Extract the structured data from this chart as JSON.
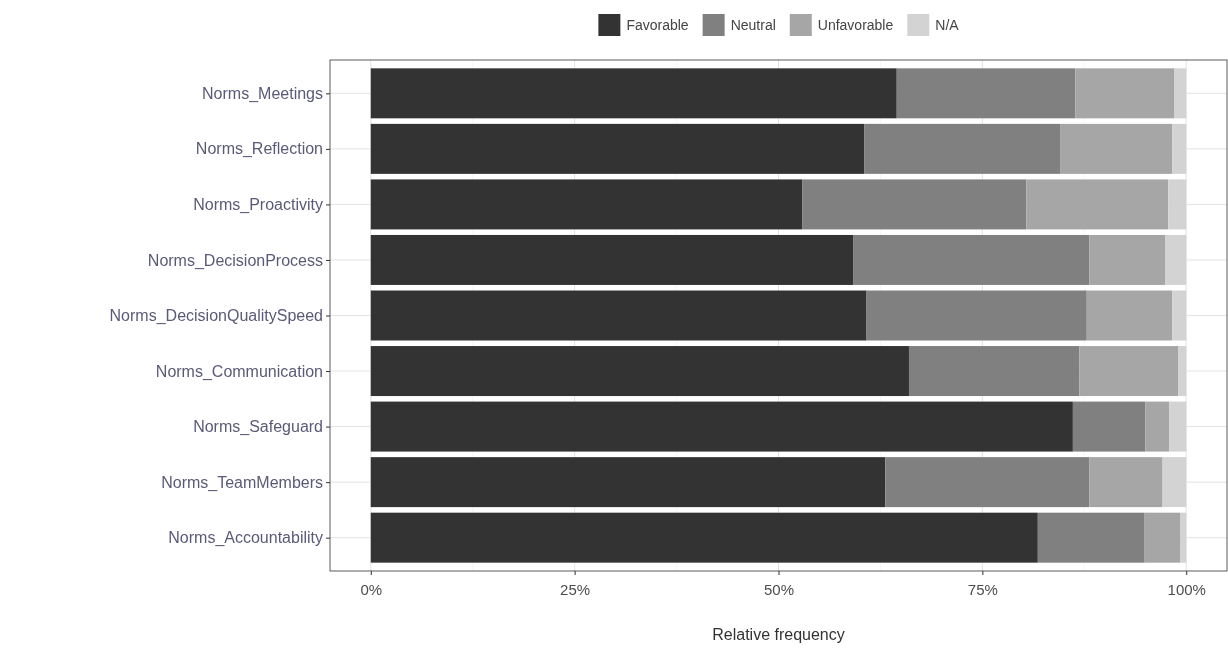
{
  "chart_data": {
    "type": "bar",
    "orientation": "horizontal",
    "stacked": true,
    "xlabel": "Relative frequency",
    "categories": [
      "Norms_Meetings",
      "Norms_Reflection",
      "Norms_Proactivity",
      "Norms_DecisionProcess",
      "Norms_DecisionQualitySpeed",
      "Norms_Communication",
      "Norms_Safeguard",
      "Norms_TeamMembers",
      "Norms_Accountability"
    ],
    "series": [
      {
        "name": "Favorable",
        "color": "#333333",
        "values": [
          64.5,
          60.5,
          52.9,
          59.2,
          60.8,
          66.0,
          86.1,
          63.1,
          81.8
        ]
      },
      {
        "name": "Neutral",
        "color": "#808080",
        "values": [
          21.9,
          24.1,
          27.5,
          28.9,
          27.0,
          20.9,
          8.9,
          25.0,
          13.1
        ]
      },
      {
        "name": "Unfavorable",
        "color": "#a6a6a6",
        "values": [
          12.1,
          13.7,
          17.4,
          9.3,
          10.5,
          12.1,
          2.9,
          9.0,
          4.4
        ]
      },
      {
        "name": "N/A",
        "color": "#d3d3d3",
        "values": [
          1.5,
          1.7,
          2.2,
          2.6,
          1.7,
          1.0,
          2.1,
          2.9,
          0.7
        ]
      }
    ],
    "xlim": [
      -5,
      105
    ],
    "xticks": [
      {
        "value": 0,
        "label": "0%"
      },
      {
        "value": 25,
        "label": "25%"
      },
      {
        "value": 50,
        "label": "50%"
      },
      {
        "value": 75,
        "label": "75%"
      },
      {
        "value": 100,
        "label": "100%"
      }
    ],
    "grid": true,
    "legend": "top"
  }
}
